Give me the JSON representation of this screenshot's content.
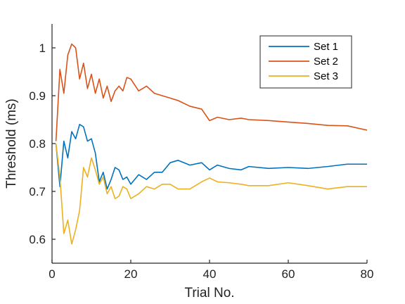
{
  "chart_data": {
    "type": "line",
    "title": "",
    "xlabel": "Trial No.",
    "ylabel": "Threshold (ms)",
    "xlim": [
      0,
      80
    ],
    "ylim": [
      0.55,
      1.05
    ],
    "xticks": [
      0,
      20,
      40,
      60,
      80
    ],
    "xtick_labels": [
      "0",
      "20",
      "40",
      "60",
      "80"
    ],
    "yticks": [
      0.6,
      0.7,
      0.8,
      0.9,
      1.0
    ],
    "ytick_labels": [
      "0.6",
      "0.7",
      "0.8",
      "0.9",
      "1"
    ],
    "grid": false,
    "legend_position": "top-right",
    "series": [
      {
        "name": "Set 1",
        "color": "#0072BD",
        "x": [
          1,
          2,
          3,
          4,
          5,
          6,
          7,
          8,
          9,
          10,
          11,
          12,
          13,
          14,
          15,
          16,
          17,
          18,
          19,
          20,
          22,
          24,
          26,
          28,
          30,
          32,
          35,
          38,
          40,
          42,
          45,
          48,
          50,
          55,
          60,
          65,
          70,
          75,
          80
        ],
        "y": [
          0.8,
          0.71,
          0.805,
          0.77,
          0.825,
          0.81,
          0.84,
          0.835,
          0.805,
          0.81,
          0.78,
          0.72,
          0.74,
          0.705,
          0.725,
          0.75,
          0.745,
          0.725,
          0.73,
          0.715,
          0.735,
          0.725,
          0.74,
          0.74,
          0.76,
          0.765,
          0.755,
          0.76,
          0.745,
          0.755,
          0.748,
          0.745,
          0.752,
          0.748,
          0.75,
          0.748,
          0.752,
          0.757,
          0.757
        ]
      },
      {
        "name": "Set 2",
        "color": "#D95319",
        "x": [
          1,
          2,
          3,
          4,
          5,
          6,
          7,
          8,
          9,
          10,
          11,
          12,
          13,
          14,
          15,
          16,
          17,
          18,
          19,
          20,
          22,
          24,
          26,
          28,
          30,
          32,
          35,
          38,
          40,
          42,
          45,
          48,
          50,
          55,
          60,
          65,
          70,
          75,
          80
        ],
        "y": [
          0.805,
          0.955,
          0.905,
          0.985,
          1.008,
          1.0,
          0.935,
          0.968,
          0.915,
          0.945,
          0.905,
          0.935,
          0.895,
          0.92,
          0.888,
          0.91,
          0.92,
          0.91,
          0.938,
          0.935,
          0.91,
          0.92,
          0.905,
          0.9,
          0.895,
          0.89,
          0.878,
          0.872,
          0.848,
          0.855,
          0.85,
          0.853,
          0.85,
          0.848,
          0.845,
          0.842,
          0.838,
          0.837,
          0.828
        ]
      },
      {
        "name": "Set 3",
        "color": "#EDB120",
        "x": [
          1,
          2,
          3,
          4,
          5,
          6,
          7,
          8,
          9,
          10,
          11,
          12,
          13,
          14,
          15,
          16,
          17,
          18,
          19,
          20,
          22,
          24,
          26,
          28,
          30,
          32,
          35,
          38,
          40,
          42,
          45,
          48,
          50,
          55,
          60,
          65,
          70,
          75,
          80
        ],
        "y": [
          0.8,
          0.73,
          0.612,
          0.64,
          0.59,
          0.62,
          0.66,
          0.75,
          0.73,
          0.77,
          0.745,
          0.715,
          0.73,
          0.695,
          0.71,
          0.685,
          0.69,
          0.71,
          0.705,
          0.685,
          0.695,
          0.71,
          0.705,
          0.715,
          0.715,
          0.705,
          0.705,
          0.72,
          0.728,
          0.72,
          0.718,
          0.715,
          0.712,
          0.712,
          0.718,
          0.712,
          0.705,
          0.71,
          0.71
        ]
      }
    ]
  }
}
